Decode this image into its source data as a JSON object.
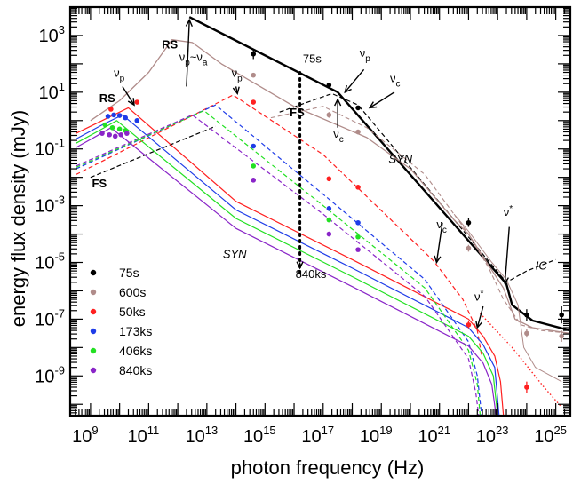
{
  "chart_data": {
    "type": "line",
    "xlabel": "photon frequency (Hz)",
    "ylabel": "energy flux density (mJy)",
    "x_scale": "log10",
    "y_scale": "log10",
    "xlim_log10": [
      8.3,
      25.5
    ],
    "ylim_log10": [
      -10.4,
      4.0
    ],
    "x_tick_labels": [
      {
        "base": "10",
        "exp": "9",
        "v": 9
      },
      {
        "base": "10",
        "exp": "11",
        "v": 11
      },
      {
        "base": "10",
        "exp": "13",
        "v": 13
      },
      {
        "base": "10",
        "exp": "15",
        "v": 15
      },
      {
        "base": "10",
        "exp": "17",
        "v": 17
      },
      {
        "base": "10",
        "exp": "19",
        "v": 19
      },
      {
        "base": "10",
        "exp": "21",
        "v": 21
      },
      {
        "base": "10",
        "exp": "23",
        "v": 23
      },
      {
        "base": "10",
        "exp": "25",
        "v": 25
      }
    ],
    "y_tick_labels": [
      {
        "base": "10",
        "exp": "3",
        "v": 3
      },
      {
        "base": "10",
        "exp": "1",
        "v": 1
      },
      {
        "base": "10",
        "exp": "-1",
        "v": -1
      },
      {
        "base": "10",
        "exp": "-3",
        "v": -3
      },
      {
        "base": "10",
        "exp": "-5",
        "v": -5
      },
      {
        "base": "10",
        "exp": "-7",
        "v": -7
      },
      {
        "base": "10",
        "exp": "-9",
        "v": -9
      }
    ],
    "legend": {
      "placement": "bottom-left",
      "entries": [
        {
          "label": "75s",
          "color": "#000000"
        },
        {
          "label": "600s",
          "color": "#b08c8a"
        },
        {
          "label": "50ks",
          "color": "#ff2020"
        },
        {
          "label": "173ks",
          "color": "#1e3ce8"
        },
        {
          "label": "406ks",
          "color": "#22e022"
        },
        {
          "label": "840ks",
          "color": "#8a25c8"
        }
      ]
    },
    "series": [
      {
        "name": "75s",
        "color": "#000000",
        "style": "solid",
        "width": 2.4,
        "points": [
          [
            12.4,
            3.65
          ],
          [
            17.5,
            1.0
          ],
          [
            23.3,
            -5.75
          ],
          [
            23.5,
            -6.5
          ],
          [
            24.2,
            -7.05
          ],
          [
            25.5,
            -7.4
          ]
        ]
      },
      {
        "name": "75s RS",
        "color": "#000000",
        "style": "dashed",
        "width": 1.2,
        "points": [
          [
            9.0,
            -2.0
          ],
          [
            13.3,
            -0.2
          ]
        ]
      },
      {
        "name": "75s FS",
        "color": "#000000",
        "style": "dashed",
        "width": 1.2,
        "points": [
          [
            15.5,
            0.3
          ],
          [
            17.3,
            0.95
          ],
          [
            18.2,
            0.55
          ],
          [
            23.3,
            -5.7
          ],
          [
            24.0,
            -5.3
          ],
          [
            25.0,
            -4.9
          ]
        ]
      },
      {
        "name": "600s",
        "color": "#b08c8a",
        "style": "solid",
        "width": 1.3,
        "points": [
          [
            9.0,
            0.0
          ],
          [
            10.0,
            0.7
          ],
          [
            11.0,
            1.7
          ],
          [
            11.8,
            2.85
          ],
          [
            12.5,
            2.75
          ],
          [
            13.5,
            2.0
          ],
          [
            16.0,
            0.5
          ],
          [
            18.5,
            -0.6
          ],
          [
            20.0,
            -1.7
          ],
          [
            21.5,
            -3.5
          ],
          [
            22.0,
            -4.0
          ],
          [
            22.5,
            -4.8
          ],
          [
            23.2,
            -5.9
          ],
          [
            23.6,
            -7.0
          ],
          [
            24.2,
            -7.3
          ],
          [
            25.5,
            -7.5
          ]
        ]
      },
      {
        "name": "600s RS",
        "color": "#b08c8a",
        "style": "solid",
        "width": 1.0,
        "points": [
          [
            21.5,
            -3.3
          ],
          [
            22.0,
            -3.9
          ],
          [
            22.8,
            -5.0
          ],
          [
            23.3,
            -5.6
          ],
          [
            23.7,
            -6.5
          ],
          [
            23.9,
            -8.0
          ],
          [
            24.3,
            -8.7
          ],
          [
            25.2,
            -9.2
          ]
        ]
      },
      {
        "name": "600s FS",
        "color": "#b08c8a",
        "style": "dashed",
        "width": 1.1,
        "points": [
          [
            15.2,
            0.1
          ],
          [
            17.0,
            0.5
          ],
          [
            18.5,
            -0.25
          ],
          [
            20.5,
            -1.9
          ],
          [
            22.0,
            -4.0
          ],
          [
            22.7,
            -5.2
          ],
          [
            23.2,
            -6.3
          ],
          [
            23.8,
            -7.2
          ],
          [
            24.5,
            -7.4
          ],
          [
            25.5,
            -7.5
          ]
        ]
      },
      {
        "name": "50ks",
        "color": "#ff2020",
        "style": "solid",
        "width": 1.2,
        "points": [
          [
            8.5,
            -0.45
          ],
          [
            9.6,
            0.1
          ],
          [
            10.3,
            0.45
          ],
          [
            14.0,
            -2.85
          ],
          [
            18.0,
            -4.9
          ],
          [
            22.0,
            -7.0
          ],
          [
            22.5,
            -7.6
          ],
          [
            22.9,
            -8.3
          ],
          [
            23.1,
            -9.2
          ],
          [
            23.2,
            -10.4
          ]
        ]
      },
      {
        "name": "50ks dashed",
        "color": "#ff2020",
        "style": "dashed",
        "width": 1.2,
        "points": [
          [
            8.5,
            -1.9
          ],
          [
            13.9,
            0.9
          ],
          [
            17.0,
            -1.2
          ],
          [
            20.8,
            -4.95
          ],
          [
            21.8,
            -6.3
          ],
          [
            22.3,
            -7.4
          ],
          [
            22.45,
            -8.3
          ]
        ]
      },
      {
        "name": "50ks dotted",
        "color": "#ff2020",
        "style": "dotted",
        "width": 1.4,
        "points": [
          [
            22.4,
            -6.8
          ],
          [
            23.5,
            -8.0
          ],
          [
            24.6,
            -9.4
          ],
          [
            25.2,
            -10.1
          ]
        ]
      },
      {
        "name": "173ks",
        "color": "#1e3ce8",
        "style": "solid",
        "width": 1.2,
        "points": [
          [
            8.5,
            -0.65
          ],
          [
            9.4,
            -0.15
          ],
          [
            10.1,
            0.2
          ],
          [
            14.0,
            -3.15
          ],
          [
            18.0,
            -5.2
          ],
          [
            22.0,
            -7.3
          ],
          [
            22.5,
            -7.9
          ],
          [
            22.9,
            -8.7
          ],
          [
            23.05,
            -10.4
          ]
        ]
      },
      {
        "name": "173ks dashed",
        "color": "#1e3ce8",
        "style": "dashed",
        "width": 1.2,
        "points": [
          [
            8.5,
            -1.7
          ],
          [
            13.3,
            0.55
          ],
          [
            17.0,
            -2.6
          ],
          [
            20.5,
            -5.6
          ],
          [
            22.0,
            -7.8
          ],
          [
            22.3,
            -9.0
          ],
          [
            22.45,
            -10.4
          ]
        ]
      },
      {
        "name": "406ks",
        "color": "#22e022",
        "style": "solid",
        "width": 1.2,
        "points": [
          [
            8.5,
            -0.8
          ],
          [
            9.3,
            -0.35
          ],
          [
            9.9,
            0.0
          ],
          [
            14.0,
            -3.45
          ],
          [
            18.0,
            -5.5
          ],
          [
            22.0,
            -7.6
          ],
          [
            22.5,
            -8.2
          ],
          [
            22.85,
            -9.0
          ],
          [
            23.0,
            -10.4
          ]
        ]
      },
      {
        "name": "406ks dashed",
        "color": "#22e022",
        "style": "dashed",
        "width": 1.2,
        "points": [
          [
            8.5,
            -1.65
          ],
          [
            12.9,
            0.35
          ],
          [
            17.0,
            -3.0
          ],
          [
            20.5,
            -5.9
          ],
          [
            22.0,
            -8.1
          ],
          [
            22.3,
            -9.3
          ],
          [
            22.4,
            -10.4
          ]
        ]
      },
      {
        "name": "840ks",
        "color": "#8a25c8",
        "style": "solid",
        "width": 1.2,
        "points": [
          [
            8.5,
            -0.95
          ],
          [
            9.2,
            -0.55
          ],
          [
            9.7,
            -0.25
          ],
          [
            14.0,
            -3.8
          ],
          [
            18.0,
            -5.85
          ],
          [
            22.0,
            -7.95
          ],
          [
            22.5,
            -8.55
          ],
          [
            22.8,
            -9.3
          ],
          [
            22.95,
            -10.4
          ]
        ]
      },
      {
        "name": "840ks dashed",
        "color": "#8a25c8",
        "style": "dashed",
        "width": 1.2,
        "points": [
          [
            8.5,
            -1.6
          ],
          [
            12.5,
            0.2
          ],
          [
            17.0,
            -3.3
          ],
          [
            20.5,
            -6.2
          ],
          [
            22.0,
            -8.4
          ],
          [
            22.25,
            -9.6
          ],
          [
            22.35,
            -10.4
          ]
        ]
      }
    ],
    "data_points": [
      {
        "x": 14.6,
        "y": 2.35,
        "color": "#000000",
        "err": 0.18
      },
      {
        "x": 17.2,
        "y": 1.25,
        "color": "#000000",
        "err": 0.06
      },
      {
        "x": 18.2,
        "y": 0.45,
        "color": "#000000",
        "err": 0.05
      },
      {
        "x": 22.0,
        "y": -3.6,
        "color": "#000000",
        "err": 0.15
      },
      {
        "x": 24.0,
        "y": -6.85,
        "color": "#000000",
        "err": 0.2
      },
      {
        "x": 25.2,
        "y": -6.85,
        "color": "#000000",
        "err": 0.3
      },
      {
        "x": 14.6,
        "y": 1.6,
        "color": "#b08c8a",
        "err": 0.06
      },
      {
        "x": 17.2,
        "y": 0.2,
        "color": "#b08c8a",
        "err": 0.1
      },
      {
        "x": 18.2,
        "y": -0.4,
        "color": "#b08c8a",
        "err": 0.08
      },
      {
        "x": 22.0,
        "y": -4.5,
        "color": "#b08c8a",
        "err": 0.12
      },
      {
        "x": 24.0,
        "y": -7.5,
        "color": "#b08c8a",
        "err": 0.15
      },
      {
        "x": 25.2,
        "y": -7.6,
        "color": "#b08c8a",
        "err": 0.2
      },
      {
        "x": 9.7,
        "y": 0.4,
        "color": "#ff2020",
        "err": 0.04
      },
      {
        "x": 10.6,
        "y": 0.65,
        "color": "#ff2020",
        "err": 0.04
      },
      {
        "x": 14.6,
        "y": 0.65,
        "color": "#ff2020",
        "err": 0.05
      },
      {
        "x": 17.2,
        "y": -2.05,
        "color": "#ff2020",
        "err": 0.05
      },
      {
        "x": 18.2,
        "y": -2.35,
        "color": "#ff2020",
        "err": 0.05
      },
      {
        "x": 22.0,
        "y": -7.2,
        "color": "#ff2020",
        "err": 0.12
      },
      {
        "x": 24.0,
        "y": -9.4,
        "color": "#ff2020",
        "err": 0.2
      },
      {
        "x": 9.6,
        "y": 0.15,
        "color": "#1e3ce8",
        "err": 0.04
      },
      {
        "x": 9.8,
        "y": 0.2,
        "color": "#1e3ce8",
        "err": 0.04
      },
      {
        "x": 10.0,
        "y": 0.18,
        "color": "#1e3ce8",
        "err": 0.04
      },
      {
        "x": 10.2,
        "y": 0.1,
        "color": "#1e3ce8",
        "err": 0.04
      },
      {
        "x": 10.6,
        "y": 0.0,
        "color": "#1e3ce8",
        "err": 0.08
      },
      {
        "x": 14.6,
        "y": -0.9,
        "color": "#1e3ce8",
        "err": 0.05
      },
      {
        "x": 17.2,
        "y": -3.1,
        "color": "#1e3ce8",
        "err": 0.06
      },
      {
        "x": 18.2,
        "y": -3.6,
        "color": "#1e3ce8",
        "err": 0.06
      },
      {
        "x": 9.5,
        "y": -0.15,
        "color": "#22e022",
        "err": 0.04
      },
      {
        "x": 9.75,
        "y": -0.25,
        "color": "#22e022",
        "err": 0.04
      },
      {
        "x": 10.0,
        "y": -0.3,
        "color": "#22e022",
        "err": 0.04
      },
      {
        "x": 10.2,
        "y": -0.35,
        "color": "#22e022",
        "err": 0.04
      },
      {
        "x": 14.6,
        "y": -1.6,
        "color": "#22e022",
        "err": 0.05
      },
      {
        "x": 17.2,
        "y": -3.5,
        "color": "#22e022",
        "err": 0.06
      },
      {
        "x": 18.2,
        "y": -4.1,
        "color": "#22e022",
        "err": 0.06
      },
      {
        "x": 9.4,
        "y": -0.45,
        "color": "#8a25c8",
        "err": 0.04
      },
      {
        "x": 9.65,
        "y": -0.5,
        "color": "#8a25c8",
        "err": 0.04
      },
      {
        "x": 9.85,
        "y": -0.55,
        "color": "#8a25c8",
        "err": 0.04
      },
      {
        "x": 10.05,
        "y": -0.5,
        "color": "#8a25c8",
        "err": 0.04
      },
      {
        "x": 10.25,
        "y": -0.45,
        "color": "#8a25c8",
        "err": 0.04
      },
      {
        "x": 14.6,
        "y": -2.1,
        "color": "#8a25c8",
        "err": 0.05
      },
      {
        "x": 17.2,
        "y": -4.0,
        "color": "#8a25c8",
        "err": 0.06
      },
      {
        "x": 18.2,
        "y": -4.55,
        "color": "#8a25c8",
        "err": 0.06
      }
    ],
    "annotations": [
      {
        "text": "RS",
        "x": 11.45,
        "y": 2.55,
        "color": "#000000",
        "style": "bold"
      },
      {
        "text": "RS",
        "x": 9.3,
        "y": 0.65,
        "color": "#000000",
        "style": "bold"
      },
      {
        "text": "FS",
        "x": 15.85,
        "y": 0.15,
        "color": "#000000",
        "style": "bold"
      },
      {
        "text": "FS",
        "x": 9.05,
        "y": -2.35,
        "color": "#000000",
        "style": "bold"
      },
      {
        "text": "75s",
        "x": 16.3,
        "y": 2.05,
        "color": "#000000",
        "style": "normal"
      },
      {
        "text": "840ks",
        "x": 16.05,
        "y": -5.55,
        "color": "#8a25c8",
        "style": "normal"
      },
      {
        "text": "SYN",
        "x": 19.25,
        "y": -1.5,
        "color": "#000000",
        "style": "italic"
      },
      {
        "text": "SYN",
        "x": 13.55,
        "y": -4.85,
        "color": "#000000",
        "style": "italic"
      },
      {
        "text": "IC",
        "x": 24.3,
        "y": -5.25,
        "color": "#000000",
        "style": "italic"
      },
      {
        "text": "νp~νa",
        "x": 12.05,
        "y": 2.1,
        "color": "#000000",
        "style": "normal"
      },
      {
        "text": "νp",
        "x": 9.8,
        "y": 1.55,
        "color": "#000000",
        "style": "normal"
      },
      {
        "text": "νp",
        "x": 13.85,
        "y": 1.55,
        "color": "#000000",
        "style": "normal"
      },
      {
        "text": "νp",
        "x": 18.25,
        "y": 2.25,
        "color": "#000000",
        "style": "normal"
      },
      {
        "text": "νc",
        "x": 17.35,
        "y": -0.6,
        "color": "#000000",
        "style": "normal"
      },
      {
        "text": "νc",
        "x": 19.3,
        "y": 1.35,
        "color": "#000000",
        "style": "normal"
      },
      {
        "text": "νc",
        "x": 20.9,
        "y": -3.8,
        "color": "#000000",
        "style": "normal"
      },
      {
        "text": "ν*",
        "x": 23.2,
        "y": -3.35,
        "color": "#000000",
        "style": "normal"
      },
      {
        "text": "ν*",
        "x": 22.2,
        "y": -6.35,
        "color": "#000000",
        "style": "normal"
      }
    ],
    "arrows": [
      {
        "from": [
          12.3,
          1.2
        ],
        "to": [
          12.4,
          3.55
        ]
      },
      {
        "from": [
          10.1,
          1.2
        ],
        "to": [
          10.5,
          0.55
        ]
      },
      {
        "from": [
          14.0,
          1.2
        ],
        "to": [
          14.05,
          0.95
        ]
      },
      {
        "from": [
          18.4,
          1.8
        ],
        "to": [
          17.75,
          1.0
        ]
      },
      {
        "from": [
          17.5,
          -0.25
        ],
        "to": [
          17.5,
          0.75
        ]
      },
      {
        "from": [
          19.45,
          1.0
        ],
        "to": [
          18.6,
          0.45
        ]
      },
      {
        "from": [
          21.1,
          -3.6
        ],
        "to": [
          20.9,
          -5.0
        ]
      },
      {
        "from": [
          23.4,
          -3.75
        ],
        "to": [
          23.25,
          -5.75
        ]
      },
      {
        "from": [
          22.5,
          -6.55
        ],
        "to": [
          22.3,
          -7.3
        ]
      },
      {
        "from": [
          16.2,
          -5.0
        ],
        "to": [
          16.2,
          -5.2
        ]
      }
    ],
    "vertical_marker": {
      "x": 16.2,
      "y_top": 1.7,
      "y_bottom": -5.45,
      "style": "dotted"
    }
  }
}
